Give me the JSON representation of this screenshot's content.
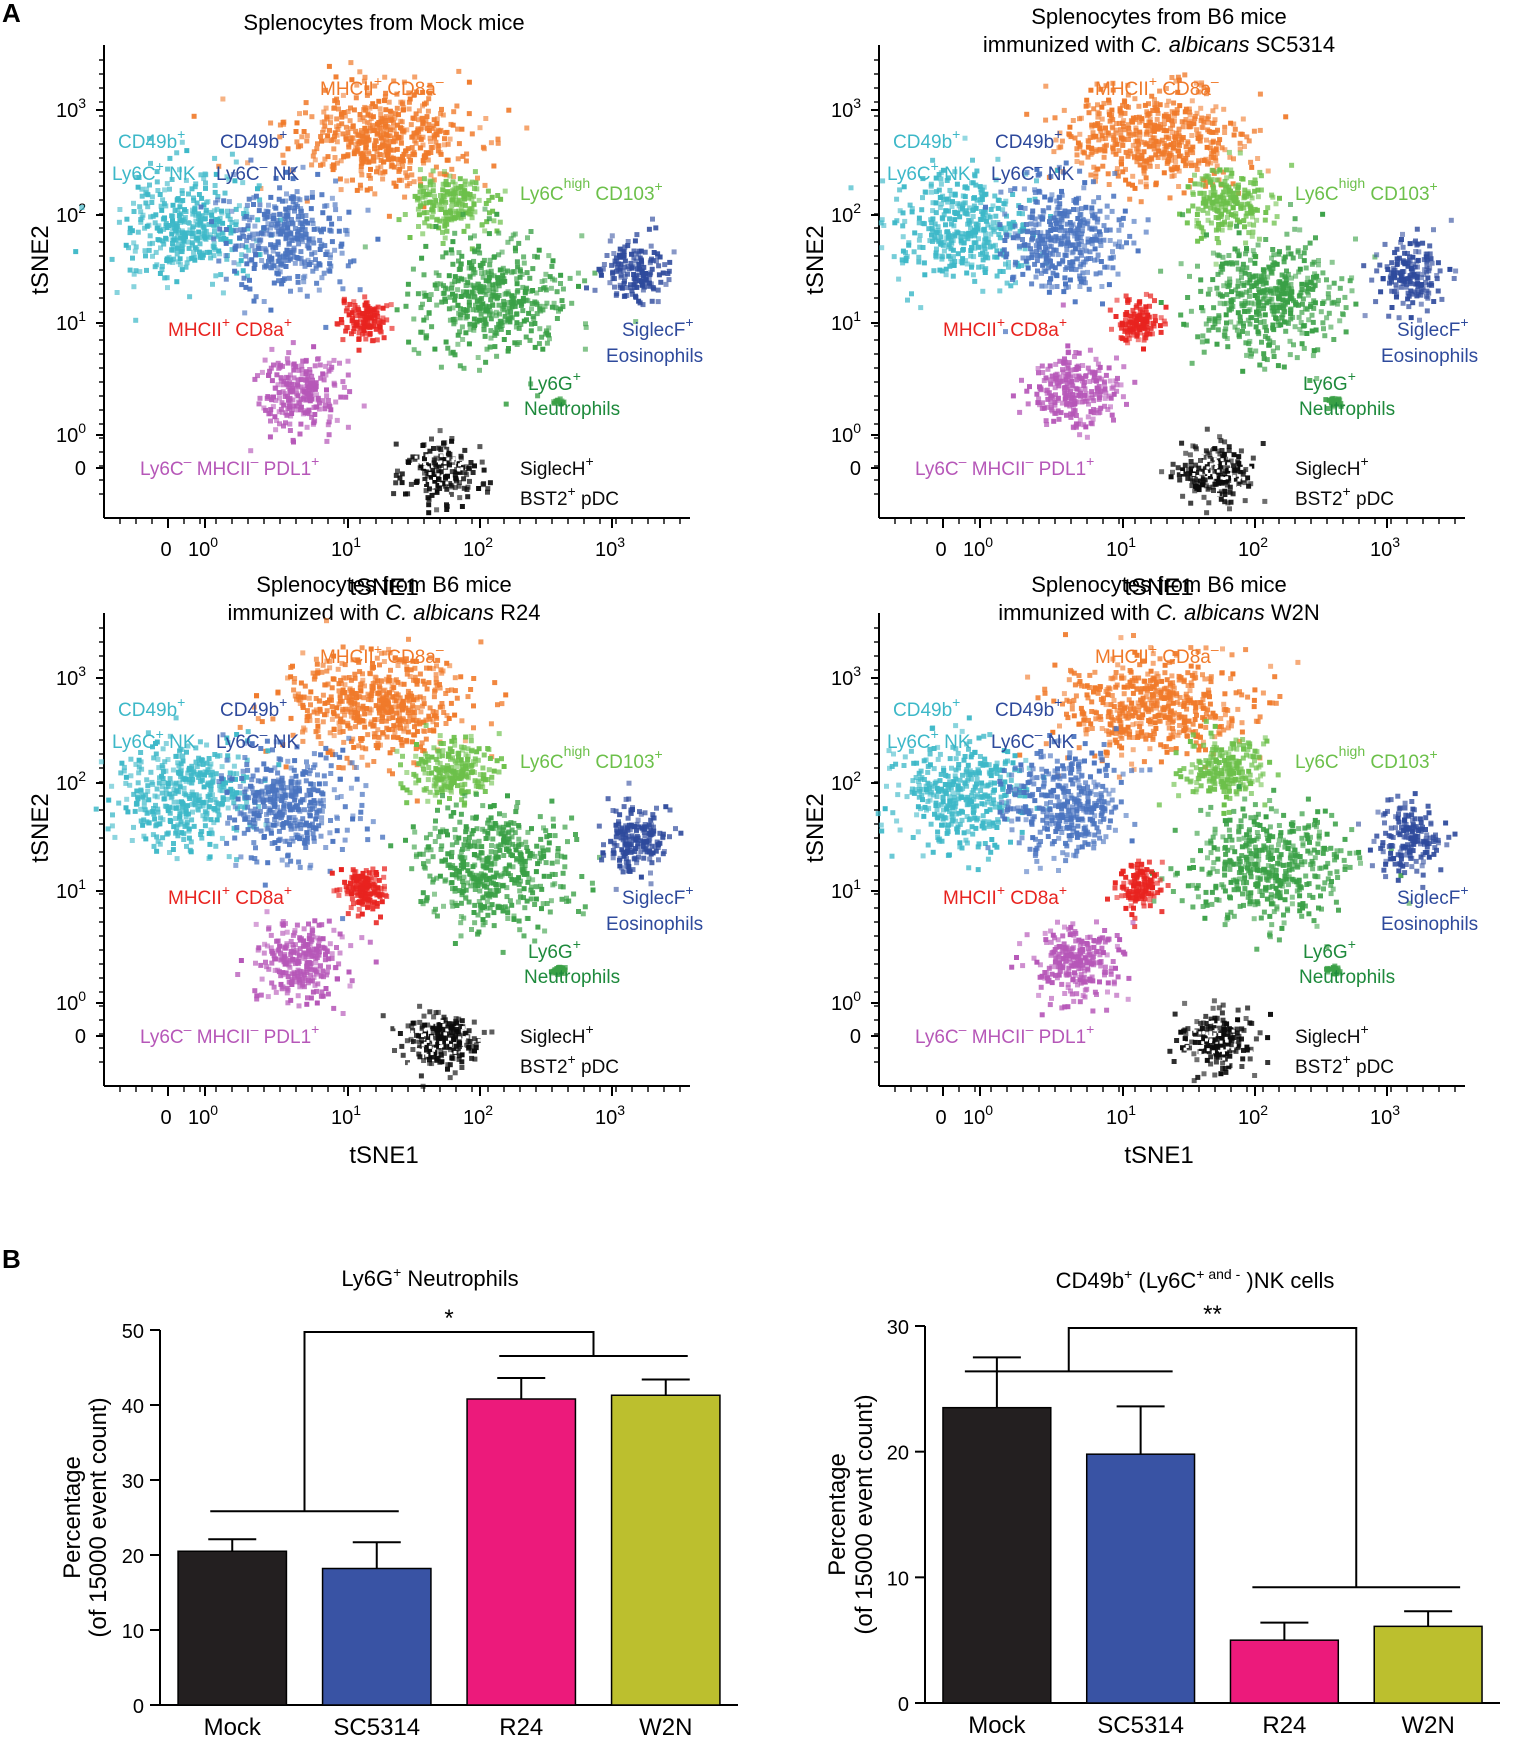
{
  "panel_labels": [
    "A",
    "B"
  ],
  "colors": {
    "orange": "#f07a2a",
    "cyan": "#3db8c8",
    "mid_blue": "#4a74c0",
    "dark_blue": "#2e4a9c",
    "light_green": "#6cc04a",
    "green": "#3aa046",
    "dark_green": "#1e8a3c",
    "red": "#e8231f",
    "purple": "#b657b8",
    "black": "#0b0b0b",
    "bar_black": "#231f20",
    "bar_blue": "#3953a4",
    "bar_pink": "#ec1a7b",
    "bar_olive": "#bcbf2e"
  },
  "tsne": {
    "xlabel": "tSNE1",
    "ylabel": "tSNE2",
    "x_tick_labels": [
      {
        "base": "0",
        "exp": ""
      },
      {
        "base": "10",
        "exp": "0"
      },
      {
        "base": "10",
        "exp": "1"
      },
      {
        "base": "10",
        "exp": "2"
      },
      {
        "base": "10",
        "exp": "3"
      }
    ],
    "y_tick_labels": [
      {
        "base": "10",
        "exp": "3"
      },
      {
        "base": "10",
        "exp": "2"
      },
      {
        "base": "10",
        "exp": "1"
      },
      {
        "base": "10",
        "exp": "0"
      },
      {
        "base": "0",
        "exp": ""
      }
    ],
    "clusters": {
      "mhcii_cd8a_neg": {
        "t": "MHCII",
        "s1": "+",
        "t2": " CD8a",
        "s2": "–"
      },
      "cd49b_ly6c_pos": {
        "l1": "CD49b",
        "l1s": "+",
        "l2": "Ly6C",
        "l2s": "+",
        "l2e": " NK"
      },
      "cd49b_ly6c_neg": {
        "l1": "CD49b",
        "l1s": "+",
        "l2": "Ly6C",
        "l2s": "–",
        "l2e": " NK"
      },
      "ly6c_high_cd103": {
        "t": "Ly6C",
        "s1": "high",
        "t2": " CD103",
        "s2": "+"
      },
      "mhcii_cd8a_pos": {
        "t": "MHCII",
        "s1": "+",
        "t2": " CD8a",
        "s2": "+"
      },
      "siglecf_eos": {
        "l1": "SiglecF",
        "l1s": "+",
        "l2": "Eosinophils"
      },
      "ly6g_neut": {
        "l1": "Ly6G",
        "l1s": "+",
        "l2": "Neutrophils"
      },
      "ly6c_mhcii_pdl1": {
        "a": "Ly6C",
        "as": "–",
        "b": " MHCII",
        "bs": "–",
        "c": " PDL1",
        "cs": "+"
      },
      "siglech_pdc": {
        "l1": "SiglecH",
        "l1s": "+",
        "l2": "BST2",
        "l2s": "+",
        "l2e": " pDC"
      }
    },
    "panels": [
      {
        "title_lines": [
          {
            "text": "Splenocytes from Mock mice"
          }
        ]
      },
      {
        "title_lines": [
          {
            "text": "Splenocytes from B6 mice"
          },
          {
            "pre": "immunized with ",
            "it": "C. albicans",
            "post": " SC5314"
          }
        ]
      },
      {
        "title_lines": [
          {
            "text": "Splenocytes from B6 mice"
          },
          {
            "pre": "immunized with ",
            "it": "C. albicans",
            "post": " R24"
          }
        ]
      },
      {
        "title_lines": [
          {
            "text": "Splenocytes from B6 mice"
          },
          {
            "pre": "immunized with ",
            "it": "C. albicans",
            "post": " W2N"
          }
        ]
      }
    ]
  },
  "chart_data": [
    {
      "type": "bar",
      "title": "Ly6G",
      "title_sup": "+",
      "title_rest": " Neutrophils",
      "categories": [
        "Mock",
        "SC5314",
        "R24",
        "W2N"
      ],
      "values": [
        20.5,
        18.2,
        40.8,
        41.3
      ],
      "errors": [
        1.6,
        3.5,
        2.8,
        2.1
      ],
      "bar_colors": [
        "#231f20",
        "#3953a4",
        "#ec1a7b",
        "#bcbf2e"
      ],
      "ylabel_line1": "Percentage",
      "ylabel_line2": "(of 15000 event count)",
      "ylim": [
        0,
        50
      ],
      "yticks": [
        0,
        10,
        20,
        30,
        40,
        50
      ],
      "significance": "*"
    },
    {
      "type": "bar",
      "title": "CD49b",
      "title_sup": "+",
      "title_rest": " (Ly6C",
      "title_sup2": "+ and -",
      "title_rest2": " )NK cells",
      "categories": [
        "Mock",
        "SC5314",
        "R24",
        "W2N"
      ],
      "values": [
        23.5,
        19.8,
        5.0,
        6.1
      ],
      "errors": [
        4.0,
        3.8,
        1.4,
        1.2
      ],
      "bar_colors": [
        "#231f20",
        "#3953a4",
        "#ec1a7b",
        "#bcbf2e"
      ],
      "ylabel_line1": "Percentage",
      "ylabel_line2": "(of 15000 event count)",
      "ylim": [
        0,
        30
      ],
      "yticks": [
        0,
        10,
        20,
        30
      ],
      "significance": "**"
    }
  ]
}
